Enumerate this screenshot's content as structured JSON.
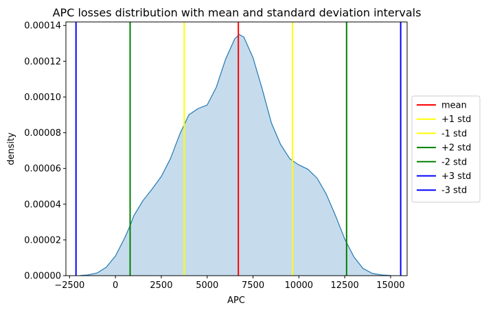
{
  "chart_data": {
    "type": "area",
    "title": "APC losses distribution with mean and standard deviation intervals",
    "xlabel": "APC",
    "ylabel": "density",
    "xlim": [
      -2700,
      15900
    ],
    "ylim": [
      0,
      0.000142
    ],
    "xticks": [
      -2500,
      0,
      2500,
      5000,
      7500,
      10000,
      12500,
      15000
    ],
    "xtick_labels": [
      "−2500",
      "0",
      "2500",
      "5000",
      "7500",
      "10000",
      "12500",
      "15000"
    ],
    "yticks": [
      0,
      2e-05,
      4e-05,
      6e-05,
      8e-05,
      0.0001,
      0.00012,
      0.00014
    ],
    "ytick_labels": [
      "0.00000",
      "0.00002",
      "0.00004",
      "0.00006",
      "0.00008",
      "0.00010",
      "0.00012",
      "0.00014"
    ],
    "grid": false,
    "legend_position": "center-right",
    "series": {
      "color": "#1f77b4",
      "fill_color": "#c6dcec",
      "x": [
        -1900,
        -1500,
        -1000,
        -500,
        0,
        500,
        800,
        1000,
        1500,
        2000,
        2500,
        3000,
        3500,
        4000,
        4500,
        5000,
        5500,
        6000,
        6500,
        6750,
        7000,
        7500,
        8000,
        8500,
        9000,
        9500,
        9700,
        10000,
        10500,
        11000,
        11500,
        12000,
        12500,
        13000,
        13500,
        14000,
        14500,
        15000
      ],
      "y": [
        1e-07,
        4e-07,
        1.5e-06,
        4.7e-06,
        1.1e-05,
        2.1e-05,
        2.8e-05,
        3.35e-05,
        4.2e-05,
        4.85e-05,
        5.55e-05,
        6.55e-05,
        7.9e-05,
        9e-05,
        9.35e-05,
        9.55e-05,
        0.0001055,
        0.000121,
        0.0001325,
        0.000135,
        0.0001335,
        0.000122,
        0.0001045,
        8.55e-05,
        7.35e-05,
        6.55e-05,
        6.4e-05,
        6.2e-05,
        5.95e-05,
        5.45e-05,
        4.55e-05,
        3.35e-05,
        2.05e-05,
        1.05e-05,
        4e-06,
        1.3e-06,
        4e-07,
        1e-07
      ]
    },
    "vlines": [
      {
        "label": "mean",
        "x": 6700,
        "color": "#ff0000"
      },
      {
        "label": "+1 std",
        "x": 9650,
        "color": "#ffff00"
      },
      {
        "label": "-1 std",
        "x": 3750,
        "color": "#ffff00"
      },
      {
        "label": "+2 std",
        "x": 12600,
        "color": "#008000"
      },
      {
        "label": "-2 std",
        "x": 800,
        "color": "#008000"
      },
      {
        "label": "+3 std",
        "x": 15550,
        "color": "#0000ff"
      },
      {
        "label": "-3 std",
        "x": -2150,
        "color": "#0000ff"
      }
    ]
  }
}
